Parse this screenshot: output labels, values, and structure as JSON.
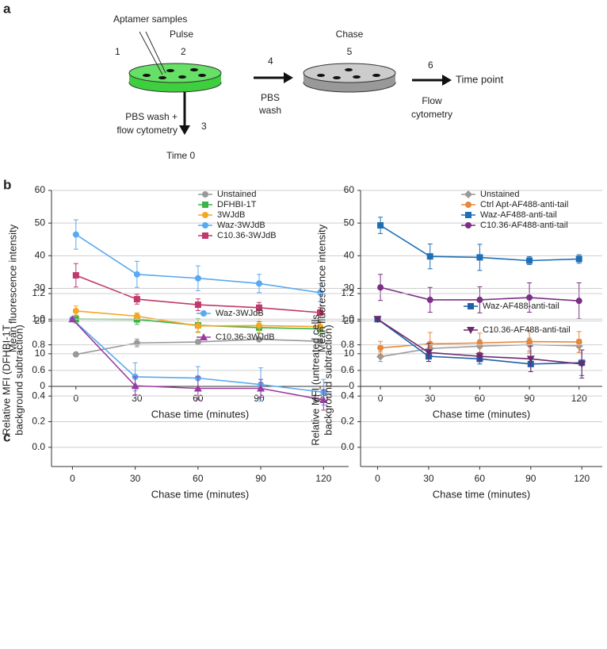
{
  "panel_labels": [
    "a",
    "b",
    "c"
  ],
  "diagram": {
    "aptamer": "Aptamer samples",
    "step1": "1",
    "pulse": "Pulse",
    "step2": "2",
    "step3": "3",
    "wash_flow": [
      "PBS wash +",
      "flow cytometry"
    ],
    "time0": "Time 0",
    "step4": "4",
    "pbs_wash": [
      "PBS",
      "wash"
    ],
    "chase": "Chase",
    "step5": "5",
    "step6": "6",
    "time_point": "Time point",
    "flow": [
      "Flow",
      "cytometry"
    ]
  },
  "chart_data": [
    {
      "type": "line",
      "ylabel": [
        "Mean fluorescence intensity"
      ],
      "xlabel": "Chase time (minutes)",
      "x": [
        0,
        30,
        60,
        90,
        120
      ],
      "xlim": [
        -12,
        134
      ],
      "xticks": [
        0,
        30,
        60,
        90,
        120
      ],
      "ylim": [
        0,
        60
      ],
      "yticks": [
        0,
        10,
        20,
        30,
        40,
        50,
        60
      ],
      "grid": true,
      "legend": "upper right",
      "series": [
        {
          "name": "Unstained",
          "color": "#999999",
          "marker": "circle",
          "values": [
            9.8,
            13.3,
            13.6,
            14.4,
            13.8
          ],
          "errors": [
            0.3,
            1.2,
            0.5,
            0.5,
            0.4
          ]
        },
        {
          "name": "DFHBI-1T",
          "color": "#3cb34a",
          "marker": "square",
          "values": [
            20.6,
            20.5,
            18.7,
            18,
            17.6
          ],
          "errors": [
            1.2,
            1.5,
            2,
            1.8,
            2
          ]
        },
        {
          "name": "3WJdB",
          "color": "#f5a623",
          "marker": "circle",
          "values": [
            23.1,
            21.5,
            18.5,
            18.6,
            18.3
          ],
          "errors": [
            1.5,
            1,
            2,
            2,
            1.5
          ]
        },
        {
          "name": "Waz-3WJdB",
          "color": "#5aa9f0",
          "marker": "circle",
          "values": [
            46.5,
            34.3,
            33.1,
            31.5,
            28.7
          ],
          "errors": [
            4.5,
            4,
            3.8,
            2.8,
            2.8
          ]
        },
        {
          "name": "C10.36-3WJdB",
          "color": "#c0396b",
          "marker": "square",
          "values": [
            34,
            26.7,
            25,
            24.1,
            22.6
          ],
          "errors": [
            3.6,
            1.5,
            1.8,
            1.6,
            1.5
          ]
        }
      ]
    },
    {
      "type": "line",
      "ylabel": [
        "Mean fluorescence intensity"
      ],
      "xlabel": "Chase time (minutes)",
      "x": [
        0,
        30,
        60,
        90,
        120
      ],
      "xlim": [
        -12,
        134
      ],
      "xticks": [
        0,
        30,
        60,
        90,
        120
      ],
      "ylim": [
        0,
        60
      ],
      "yticks": [
        0,
        10,
        20,
        30,
        40,
        50,
        60
      ],
      "grid": true,
      "legend": "upper right",
      "series": [
        {
          "name": "Unstained",
          "color": "#999999",
          "marker": "diamond",
          "values": [
            9.1,
            11.6,
            12.3,
            12.8,
            12.4
          ],
          "errors": [
            1.5,
            2,
            2,
            2,
            2
          ]
        },
        {
          "name": "Ctrl Apt-AF488-anti-tail",
          "color": "#e8873a",
          "marker": "circle",
          "values": [
            11.8,
            13,
            13.3,
            13.7,
            13.6
          ],
          "errors": [
            2,
            3.5,
            3,
            3.5,
            3.2
          ]
        },
        {
          "name": "Waz-AF488-anti-tail",
          "color": "#1f6fb5",
          "marker": "square",
          "values": [
            49.3,
            39.8,
            39.5,
            38.5,
            39
          ],
          "errors": [
            2.5,
            3.8,
            4,
            1.2,
            1.3
          ]
        },
        {
          "name": "C10.36-AF488-anti-tail",
          "color": "#7b2e86",
          "marker": "circle",
          "values": [
            30.3,
            26.5,
            26.5,
            27.2,
            26.2
          ],
          "errors": [
            4,
            3.8,
            4,
            4.5,
            5.5
          ]
        }
      ]
    },
    {
      "type": "line",
      "ylabel": [
        "Relative MFI (DFHBI-1T",
        "background subtraction)"
      ],
      "xlabel": "Chase time (minutes)",
      "x": [
        0,
        30,
        60,
        90,
        120
      ],
      "xlim": [
        -10,
        132
      ],
      "xticks": [
        0,
        30,
        60,
        90,
        120
      ],
      "ylim": [
        -0.15,
        1.2
      ],
      "yticks": [
        {
          "value": 0,
          "label": "0.0"
        },
        0.2,
        0.4,
        0.6,
        0.8,
        {
          "value": 1,
          "label": "1.0"
        },
        1.2
      ],
      "grid": true,
      "legend": "upper right",
      "series": [
        {
          "name": "Waz-3WJdB",
          "color": "#5aa9f0",
          "marker": "circle",
          "values": [
            1.0,
            0.55,
            0.54,
            0.49,
            0.43
          ],
          "errors": [
            0.01,
            0.11,
            0.09,
            0.13,
            0.1
          ]
        },
        {
          "name": "C10.36-3WJdB",
          "color": "#9b3aa0",
          "marker": "triangle",
          "values": [
            1.0,
            0.48,
            0.46,
            0.46,
            0.37
          ],
          "errors": [
            0.01,
            0.07,
            0.09,
            0.07,
            0.08
          ]
        }
      ]
    },
    {
      "type": "line",
      "ylabel": [
        "Relative MFI (untreated cells",
        "background subtraction)"
      ],
      "xlabel": "Chase time (minutes)",
      "x": [
        0,
        30,
        60,
        90,
        120
      ],
      "xlim": [
        -10,
        132
      ],
      "xticks": [
        0,
        30,
        60,
        90,
        120
      ],
      "ylim": [
        -0.15,
        1.2
      ],
      "yticks": [
        {
          "value": 0,
          "label": "0.0"
        },
        0.2,
        0.4,
        0.6,
        0.8,
        {
          "value": 1,
          "label": "1.0"
        },
        1.2
      ],
      "grid": true,
      "legend": "upper right",
      "series": [
        {
          "name": "Waz-AF488-anti-tail",
          "color": "#1f5fa8",
          "marker": "square",
          "values": [
            1,
            0.71,
            0.69,
            0.65,
            0.66
          ],
          "errors": [
            0.01,
            0.04,
            0.04,
            0.06,
            0.1
          ]
        },
        {
          "name": "C10.36-AF488-anti-tail",
          "color": "#6b2a6e",
          "marker": "triangle-down",
          "values": [
            1,
            0.74,
            0.71,
            0.69,
            0.65
          ],
          "errors": [
            0.01,
            0.07,
            0.03,
            0.1,
            0.11
          ]
        }
      ]
    }
  ]
}
